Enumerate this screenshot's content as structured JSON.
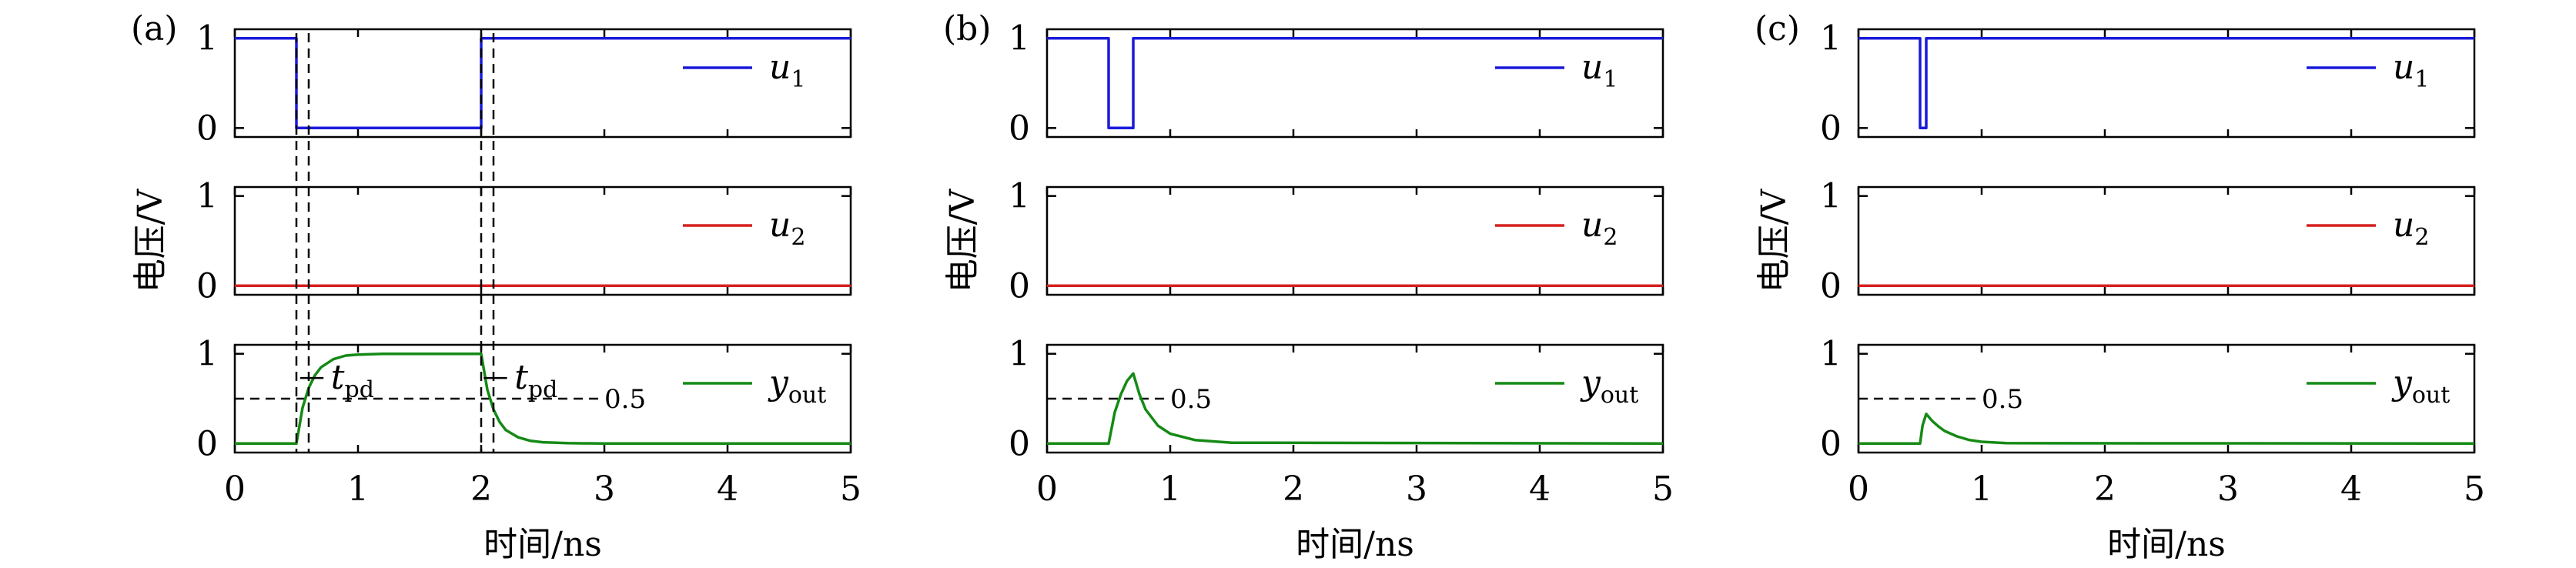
{
  "chart_data": [
    {
      "panel_label": "(a)",
      "type": "line",
      "xlabel": "时间/ns",
      "ylabel": "电压/V",
      "xlim": [
        0,
        5
      ],
      "xticks": [
        "0",
        "1",
        "2",
        "3",
        "4",
        "5"
      ],
      "rows": [
        {
          "yticks": [
            "0",
            "1"
          ],
          "ylim": [
            -0.1,
            1.1
          ],
          "series": [
            {
              "name": "u1",
              "name_sub": "1",
              "color": "#1a1adb",
              "x": [
                0,
                0.5,
                0.5,
                2.0,
                2.0,
                5.0
              ],
              "y": [
                1,
                1,
                0,
                0,
                1,
                1
              ]
            }
          ]
        },
        {
          "yticks": [
            "0",
            "1"
          ],
          "ylim": [
            -0.1,
            1.1
          ],
          "series": [
            {
              "name": "u2",
              "name_sub": "2",
              "color": "#d62020",
              "x": [
                0,
                5
              ],
              "y": [
                0,
                0
              ]
            }
          ]
        },
        {
          "yticks": [
            "0",
            "1"
          ],
          "ylim": [
            -0.1,
            1.1
          ],
          "series": [
            {
              "name": "yout",
              "name_sub": "out",
              "color": "#158a15",
              "x": [
                0,
                0.5,
                0.55,
                0.6,
                0.65,
                0.7,
                0.8,
                0.9,
                1.0,
                1.2,
                1.5,
                2.0,
                2.05,
                2.1,
                2.15,
                2.2,
                2.3,
                2.4,
                2.5,
                2.7,
                3.0,
                5.0
              ],
              "y": [
                0,
                0,
                0.4,
                0.62,
                0.76,
                0.85,
                0.94,
                0.98,
                0.99,
                1.0,
                1.0,
                1.0,
                0.6,
                0.38,
                0.24,
                0.15,
                0.07,
                0.03,
                0.015,
                0.005,
                0,
                0
              ]
            }
          ],
          "threshold": {
            "value": 0.5,
            "label": "0.5"
          }
        }
      ],
      "annotations": [
        {
          "text": "t",
          "sub": "pd",
          "x": 0.78,
          "y": 0.73
        },
        {
          "text": "t",
          "sub": "pd",
          "x": 2.27,
          "y": 0.73
        }
      ],
      "vlines": [
        0.5,
        0.6,
        2.0,
        2.1
      ]
    },
    {
      "panel_label": "(b)",
      "type": "line",
      "xlabel": "时间/ns",
      "ylabel": "电压/V",
      "xlim": [
        0,
        5
      ],
      "xticks": [
        "0",
        "1",
        "2",
        "3",
        "4",
        "5"
      ],
      "rows": [
        {
          "yticks": [
            "0",
            "1"
          ],
          "ylim": [
            -0.1,
            1.1
          ],
          "series": [
            {
              "name": "u1",
              "name_sub": "1",
              "color": "#1a1adb",
              "x": [
                0,
                0.5,
                0.5,
                0.7,
                0.7,
                5.0
              ],
              "y": [
                1,
                1,
                0,
                0,
                1,
                1
              ]
            }
          ]
        },
        {
          "yticks": [
            "0",
            "1"
          ],
          "ylim": [
            -0.1,
            1.1
          ],
          "series": [
            {
              "name": "u2",
              "name_sub": "2",
              "color": "#d62020",
              "x": [
                0,
                5
              ],
              "y": [
                0,
                0
              ]
            }
          ]
        },
        {
          "yticks": [
            "0",
            "1"
          ],
          "ylim": [
            -0.1,
            1.1
          ],
          "series": [
            {
              "name": "yout",
              "name_sub": "out",
              "color": "#158a15",
              "x": [
                0,
                0.5,
                0.55,
                0.6,
                0.65,
                0.7,
                0.75,
                0.8,
                0.9,
                1.0,
                1.2,
                1.5,
                5.0
              ],
              "y": [
                0,
                0,
                0.35,
                0.55,
                0.7,
                0.78,
                0.55,
                0.38,
                0.2,
                0.11,
                0.04,
                0.01,
                0
              ]
            }
          ],
          "threshold": {
            "value": 0.5,
            "label": "0.5"
          }
        }
      ]
    },
    {
      "panel_label": "(c)",
      "type": "line",
      "xlabel": "时间/ns",
      "ylabel": "电压/V",
      "xlim": [
        0,
        5
      ],
      "xticks": [
        "0",
        "1",
        "2",
        "3",
        "4",
        "5"
      ],
      "rows": [
        {
          "yticks": [
            "0",
            "1"
          ],
          "ylim": [
            -0.1,
            1.1
          ],
          "series": [
            {
              "name": "u1",
              "name_sub": "1",
              "color": "#1a1adb",
              "x": [
                0,
                0.5,
                0.5,
                0.55,
                0.55,
                5.0
              ],
              "y": [
                1,
                1,
                0,
                0,
                1,
                1
              ]
            }
          ]
        },
        {
          "yticks": [
            "0",
            "1"
          ],
          "ylim": [
            -0.1,
            1.1
          ],
          "series": [
            {
              "name": "u2",
              "name_sub": "2",
              "color": "#d62020",
              "x": [
                0,
                5
              ],
              "y": [
                0,
                0
              ]
            }
          ]
        },
        {
          "yticks": [
            "0",
            "1"
          ],
          "ylim": [
            -0.1,
            1.1
          ],
          "series": [
            {
              "name": "yout",
              "name_sub": "out",
              "color": "#158a15",
              "x": [
                0,
                0.5,
                0.52,
                0.55,
                0.6,
                0.65,
                0.7,
                0.8,
                0.9,
                1.0,
                1.2,
                5.0
              ],
              "y": [
                0,
                0,
                0.2,
                0.33,
                0.25,
                0.19,
                0.14,
                0.08,
                0.04,
                0.02,
                0.005,
                0
              ]
            }
          ],
          "threshold": {
            "value": 0.5,
            "label": "0.5"
          }
        }
      ]
    }
  ]
}
